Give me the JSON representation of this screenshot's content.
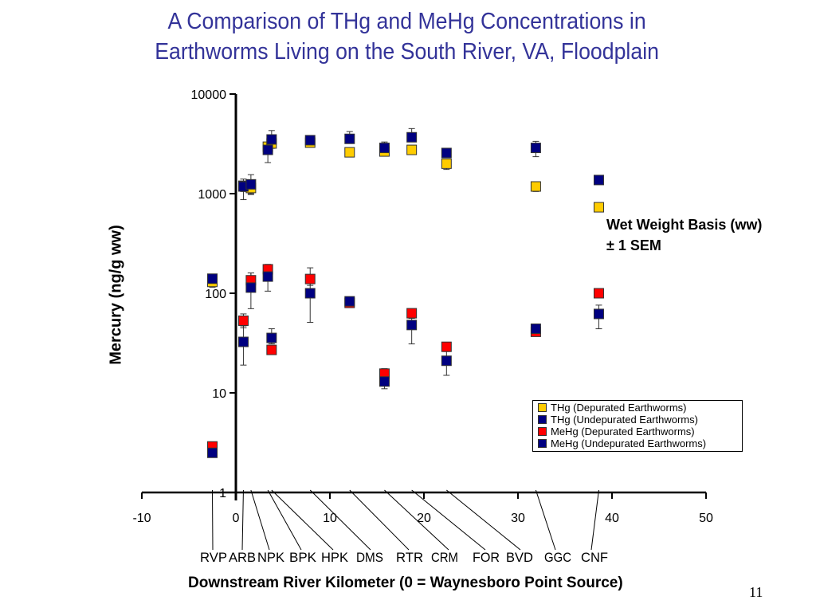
{
  "slide": {
    "title_line1": "A Comparison of THg and MeHg Concentrations in",
    "title_line2": "Earthworms Living on the South River, VA, Floodplain",
    "annotation_line1": "Wet Weight Basis (ww)",
    "annotation_line2": "± 1 SEM",
    "page_number": "11"
  },
  "chart_data": {
    "type": "scatter",
    "title": "A Comparison of THg and MeHg Concentrations in Earthworms Living on the South River, VA, Floodplain",
    "xlabel": "Downstream River Kilometer (0 = Waynesboro Point Source)",
    "ylabel": "Mercury (ng/g ww)",
    "xlim": [
      -10,
      50
    ],
    "ylim": [
      1,
      10000
    ],
    "yscale": "log",
    "grid": false,
    "legend_position": "bottom-right",
    "x_ticks": [
      "-10",
      "0",
      "10",
      "20",
      "30",
      "40",
      "50"
    ],
    "y_ticks": [
      "1",
      "10",
      "100",
      "1000",
      "10000"
    ],
    "sites": [
      {
        "code": "RVP",
        "km": -2.5
      },
      {
        "code": "ARB",
        "km": 0.8
      },
      {
        "code": "NPK",
        "km": 1.6
      },
      {
        "code": "BPK",
        "km": 3.4
      },
      {
        "code": "HPK",
        "km": 3.8
      },
      {
        "code": "DMS",
        "km": 7.9
      },
      {
        "code": "RTR",
        "km": 12.1
      },
      {
        "code": "CRM",
        "km": 15.8
      },
      {
        "code": "FOR",
        "km": 18.7
      },
      {
        "code": "BVD",
        "km": 22.4
      },
      {
        "code": "GGC",
        "km": 31.9
      },
      {
        "code": "CNF",
        "km": 38.6
      }
    ],
    "site_label_text": [
      "RVP",
      "ARB",
      "NPK",
      "BPK",
      "HPK",
      "DMS",
      "RTR",
      "CRM",
      "FOR",
      "BVD",
      "GGC",
      "CNF"
    ],
    "series": [
      {
        "name": "THg (Depurated Earthworms)",
        "color": "#FFCC00",
        "x": [
          -2.5,
          0.8,
          1.6,
          3.4,
          3.8,
          7.9,
          12.1,
          15.8,
          18.7,
          22.4,
          31.9,
          38.6
        ],
        "values": [
          130,
          1200,
          1140,
          2960,
          3190,
          3250,
          2600,
          2650,
          2750,
          2000,
          1180,
          730
        ],
        "err_low": [
          115,
          1050,
          980,
          2700,
          2900,
          3000,
          2450,
          2450,
          2600,
          1750,
          1050,
          730
        ],
        "err_high": [
          140,
          1400,
          1300,
          3200,
          3500,
          3450,
          2700,
          2850,
          2900,
          2150,
          1300,
          730
        ]
      },
      {
        "name": "THg (Undepurated Earthworms)",
        "color": "#000080",
        "x": [
          -2.5,
          0.8,
          1.6,
          3.4,
          3.8,
          7.9,
          12.1,
          15.8,
          18.7,
          22.4,
          31.9,
          38.6
        ],
        "values": [
          140,
          1180,
          1240,
          2750,
          3500,
          3440,
          3550,
          2880,
          3680,
          2560,
          2880,
          1370
        ],
        "err_low": [
          140,
          870,
          1000,
          2050,
          2850,
          3100,
          3550,
          2880,
          3680,
          2400,
          2350,
          1300
        ],
        "err_high": [
          140,
          1330,
          1550,
          3050,
          4300,
          3800,
          4200,
          3300,
          4500,
          2800,
          3350,
          1450
        ]
      },
      {
        "name": "MeHg (Depurated Earthworms)",
        "color": "#FF0000",
        "x": [
          -2.5,
          0.8,
          1.6,
          3.4,
          3.8,
          7.9,
          12.1,
          15.8,
          18.7,
          22.4,
          31.9,
          38.6
        ],
        "values": [
          2.9,
          53,
          135,
          174,
          27,
          139,
          80,
          15.6,
          63,
          29,
          41,
          100
        ],
        "err_low": [
          2.9,
          45,
          120,
          160,
          27,
          120,
          75,
          14.5,
          58,
          29,
          39,
          100
        ],
        "err_high": [
          2.9,
          62,
          160,
          195,
          27,
          180,
          85,
          17.5,
          68,
          29,
          44,
          100
        ]
      },
      {
        "name": "MeHg (Undepurated Earthworms)",
        "color": "#000080",
        "x": [
          -2.5,
          0.8,
          1.6,
          3.4,
          3.8,
          7.9,
          12.1,
          15.8,
          18.7,
          22.4,
          31.9,
          38.6
        ],
        "values": [
          2.5,
          32.5,
          114,
          147,
          35.6,
          100,
          83,
          13,
          48,
          21,
          44,
          62
        ],
        "err_low": [
          2.5,
          19,
          70,
          105,
          31,
          51,
          80,
          11,
          31,
          15,
          38,
          44
        ],
        "err_high": [
          2.5,
          47,
          160,
          185,
          44,
          150,
          86,
          15,
          56,
          26,
          49,
          76
        ]
      }
    ]
  }
}
